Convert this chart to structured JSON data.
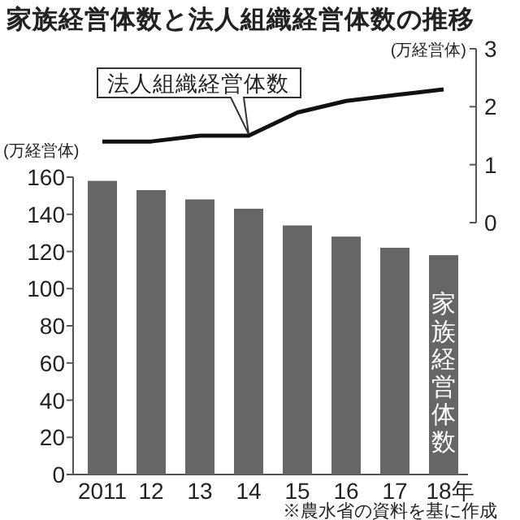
{
  "chart_data": [
    {
      "type": "line",
      "title": "家族経営体数と法人組織経営体数の推移",
      "ylabel": "(万経営体)",
      "categories": [
        null,
        null,
        null,
        null,
        null,
        null,
        null,
        null
      ],
      "series": [
        {
          "name": "法人組織経営体数",
          "color": "#111111",
          "values": [
            1.4,
            1.4,
            1.5,
            1.5,
            1.9,
            2.1,
            2.2,
            2.3
          ]
        }
      ],
      "ylim": [
        0,
        3
      ],
      "yticks": [
        0,
        1,
        2,
        3
      ],
      "tick_labels": "y",
      "grid": false,
      "legend": false
    },
    {
      "type": "bar",
      "ylabel": "(万経営体)",
      "categories": [
        "2011",
        "12",
        "13",
        "14",
        "15",
        "16",
        "17",
        "18年"
      ],
      "series": [
        {
          "name": "家族経営体数",
          "color": "#666666",
          "values": [
            158,
            153,
            148,
            143,
            134,
            128,
            122,
            118
          ]
        }
      ],
      "ylim": [
        0,
        160
      ],
      "yticks": [
        0,
        20,
        40,
        60,
        80,
        100,
        120,
        140,
        160
      ],
      "grid": false,
      "legend": false,
      "annotations": [
        "※農水省の資料を基に作成"
      ]
    }
  ]
}
